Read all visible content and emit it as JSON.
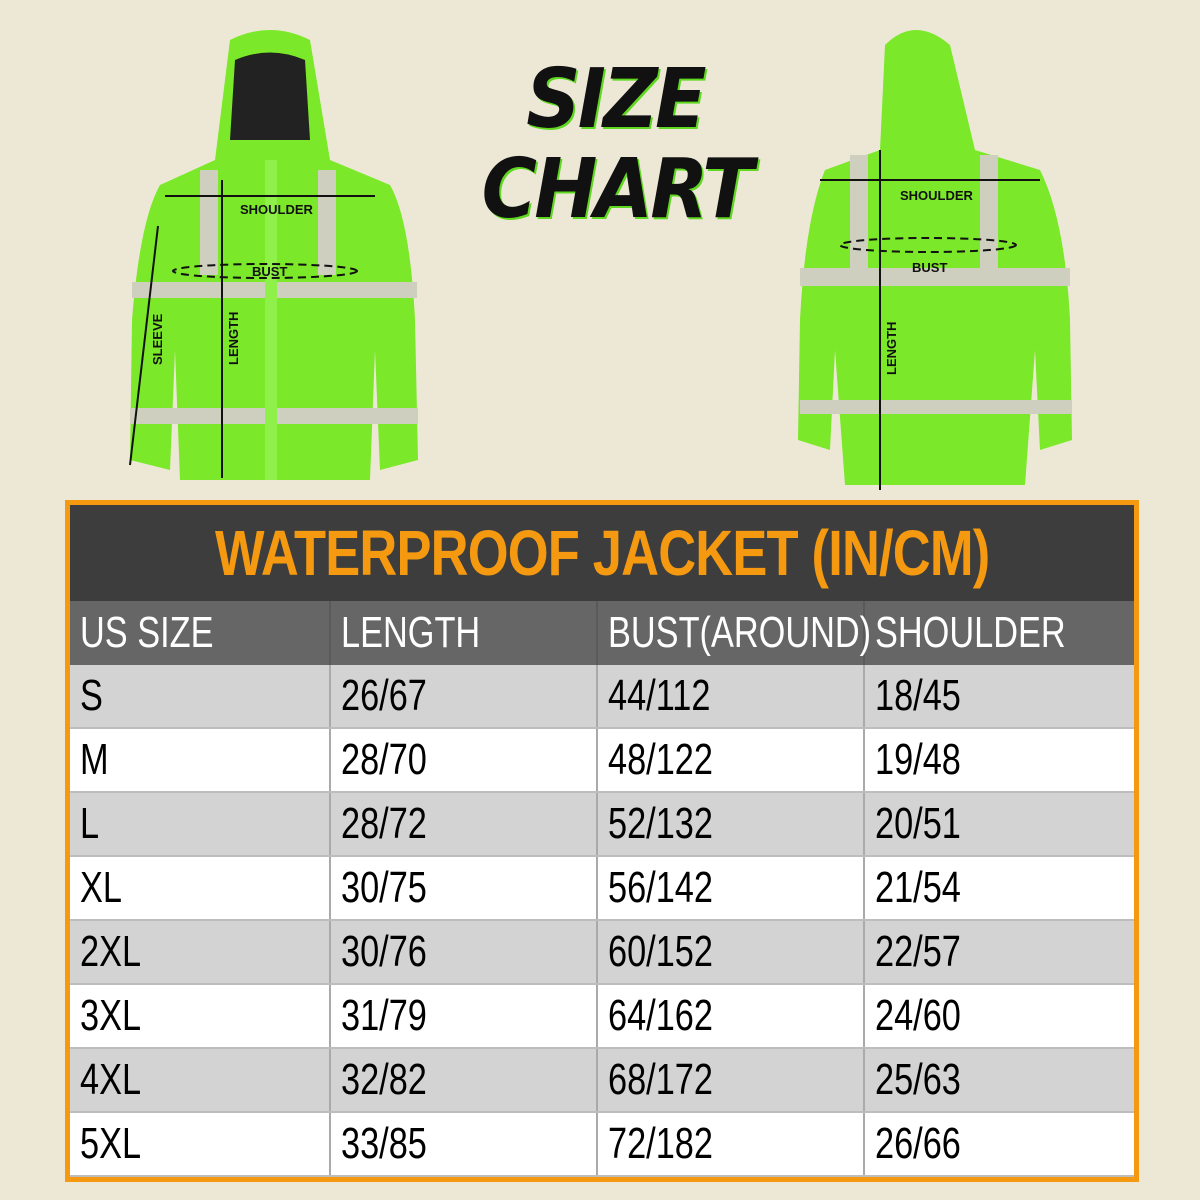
{
  "heading": {
    "line1": "SIZE",
    "line2": "CHART"
  },
  "front_labels": {
    "shoulder": "SHOULDER",
    "bust": "BUST",
    "sleeve": "SLEEVE",
    "length": "LENGTH"
  },
  "back_labels": {
    "shoulder": "SHOULDER",
    "bust": "BUST",
    "length": "LENGTH"
  },
  "colors": {
    "background": "#ede8d6",
    "accent": "#f59a10",
    "jacket": "#7be829",
    "title_bar": "#3d3d3d",
    "header_row": "#666666"
  },
  "table": {
    "title": "WATERPROOF JACKET (IN/CM)",
    "columns": [
      "US SIZE",
      "LENGTH",
      "BUST(AROUND)",
      "SHOULDER"
    ],
    "rows": [
      [
        "S",
        "26/67",
        "44/112",
        "18/45"
      ],
      [
        "M",
        "28/70",
        "48/122",
        "19/48"
      ],
      [
        "L",
        "28/72",
        "52/132",
        "20/51"
      ],
      [
        "XL",
        "30/75",
        "56/142",
        "21/54"
      ],
      [
        "2XL",
        "30/76",
        "60/152",
        "22/57"
      ],
      [
        "3XL",
        "31/79",
        "64/162",
        "24/60"
      ],
      [
        "4XL",
        "32/82",
        "68/172",
        "25/63"
      ],
      [
        "5XL",
        "33/85",
        "72/182",
        "26/66"
      ]
    ]
  }
}
